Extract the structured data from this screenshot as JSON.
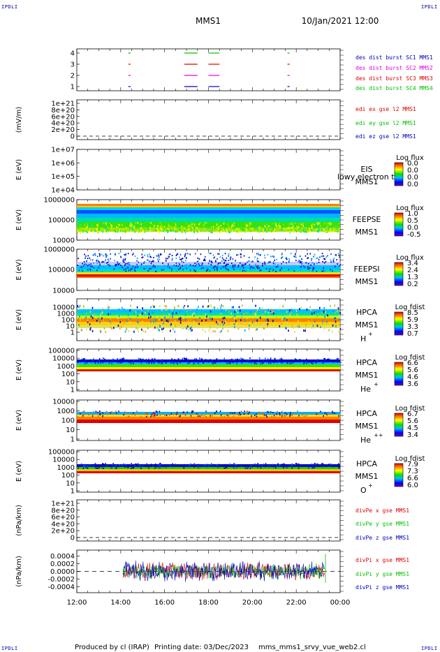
{
  "header": {
    "mission": "MMS1",
    "datetime": "10/Jan/2021 12:00"
  },
  "corner_tag": "IPDLI",
  "footer": {
    "produced": "Produced by cl (IRAP)",
    "printing": "Printing date: 03/Dec/2023",
    "script": "mms_mms1_srvy_vue_web2.cl"
  },
  "colors": {
    "red": "#e00000",
    "green": "#00c000",
    "blue": "#0000c0",
    "magenta": "#e000e0",
    "text_blue": "#0000a0"
  },
  "chart_data": [
    {
      "type": "line",
      "id": "burst",
      "yticks": [
        "4",
        "3",
        "2",
        "1"
      ],
      "series": [
        {
          "name": "des dist burst SC1 MMS1",
          "color": "#0000c0",
          "y": 1
        },
        {
          "name": "des dist burst SC2 MMS2",
          "color": "#e000e0",
          "y": 2
        },
        {
          "name": "des dist burst SC3 MMS3",
          "color": "#e00000",
          "y": 3
        },
        {
          "name": "des dist burst SC4 MMS4",
          "color": "#00c000",
          "y": 4
        }
      ],
      "intervals_hours": [
        [
          14.35,
          14.45
        ],
        [
          16.9,
          17.5
        ],
        [
          18.0,
          18.5
        ],
        [
          21.6,
          21.7
        ]
      ]
    },
    {
      "type": "line",
      "id": "edi",
      "ylabel": "(mV/m)",
      "yticks": [
        "1e+21",
        "8e+20",
        "6e+20",
        "4e+20",
        "2e+20",
        "0"
      ],
      "series": [
        {
          "name": "edi ex gse l2 MMS1",
          "color": "#e00000"
        },
        {
          "name": "edi ey gse l2 MMS1",
          "color": "#00c000"
        },
        {
          "name": "edi ez gse l2 MMS1",
          "color": "#0000c0"
        }
      ]
    },
    {
      "type": "heatmap",
      "id": "eis",
      "ylabel": "E (eV)",
      "yticks": [
        "1e+07",
        "1e+06",
        "1e+05",
        "1e+04"
      ],
      "instrument": "EIS",
      "sc": "MMS1",
      "overlap": "lowy electron to",
      "cbar_title": "Log flux",
      "cbar_ticks": [
        "0.0",
        "0.0",
        "0.0",
        "0.0"
      ]
    },
    {
      "type": "heatmap",
      "id": "feepse",
      "ylabel": "E (eV)",
      "yticks": [
        "1000000",
        "100000",
        "10000"
      ],
      "instrument": "FEEPSE",
      "sc": "MMS1",
      "cbar_title": "Log flux",
      "cbar_ticks": [
        "1.0",
        "0.5",
        "0.0",
        "-0.5"
      ]
    },
    {
      "type": "heatmap",
      "id": "feepsi",
      "ylabel": "E (eV)",
      "yticks": [
        "1000000",
        "100000",
        "10000"
      ],
      "instrument": "FEEPSI",
      "sc": "MMS1",
      "cbar_title": "Log flux",
      "cbar_ticks": [
        "3.4",
        "2.4",
        "1.3",
        "0.2"
      ]
    },
    {
      "type": "heatmap",
      "id": "hpca_h",
      "ylabel": "E (eV)",
      "yticks": [
        "10000",
        "1000",
        "100",
        "10",
        "1"
      ],
      "instrument": "HPCA",
      "sc": "MMS1",
      "species": "H",
      "charge": "+",
      "cbar_title": "Log fdist",
      "cbar_ticks": [
        "8.5",
        "5.9",
        "3.3",
        "0.7"
      ]
    },
    {
      "type": "heatmap",
      "id": "hpca_he",
      "ylabel": "E (eV)",
      "yticks": [
        "100000",
        "10000",
        "1000",
        "100",
        "10",
        "1"
      ],
      "instrument": "HPCA",
      "sc": "MMS1",
      "species": "He",
      "charge": "+",
      "cbar_title": "Log fdist",
      "cbar_ticks": [
        "6.6",
        "5.6",
        "4.6",
        "3.6"
      ]
    },
    {
      "type": "heatmap",
      "id": "hpca_hepp",
      "ylabel": "E (eV)",
      "yticks": [
        "10000",
        "1000",
        "100",
        "10",
        "1"
      ],
      "instrument": "HPCA",
      "sc": "MMS1",
      "species": "He",
      "charge": "++",
      "cbar_title": "Log fdist",
      "cbar_ticks": [
        "6.7",
        "5.6",
        "4.5",
        "3.4"
      ]
    },
    {
      "type": "heatmap",
      "id": "hpca_o",
      "ylabel": "E (eV)",
      "yticks": [
        "100000",
        "10000",
        "1000",
        "100",
        "10",
        "1"
      ],
      "instrument": "HPCA",
      "sc": "MMS1",
      "species": "O",
      "charge": "+",
      "cbar_title": "Log fdist",
      "cbar_ticks": [
        "7.9",
        "7.3",
        "6.6",
        "6.0"
      ]
    },
    {
      "type": "line",
      "id": "divpe",
      "ylabel": "(nPa/km)",
      "yticks": [
        "1e+21",
        "8e+20",
        "6e+20",
        "4e+20",
        "2e+20",
        "0"
      ],
      "series": [
        {
          "name": "divPe x gse MMS1",
          "color": "#e00000"
        },
        {
          "name": "divPe y gse MMS1",
          "color": "#00c000"
        },
        {
          "name": "divPe z gse MMS1",
          "color": "#0000c0"
        }
      ]
    },
    {
      "type": "line",
      "id": "divpi",
      "ylabel": "(nPa/km)",
      "yticks": [
        "0.0004",
        "0.0002",
        "0.0000",
        "-0.0002",
        "-0.0004"
      ],
      "ylim": [
        -0.0005,
        0.0005
      ],
      "data_start_hour": 14.1,
      "data_end_hour": 23.3,
      "series": [
        {
          "name": "divPi x gse MMS1",
          "color": "#e00000"
        },
        {
          "name": "divPi y gse MMS1",
          "color": "#00c000"
        },
        {
          "name": "divPi z gse MMS1",
          "color": "#0000c0"
        }
      ]
    }
  ],
  "xaxis": {
    "ticks": [
      "12:00",
      "14:00",
      "16:00",
      "18:00",
      "20:00",
      "22:00",
      "00:00"
    ],
    "range_hours": [
      12,
      24
    ]
  }
}
